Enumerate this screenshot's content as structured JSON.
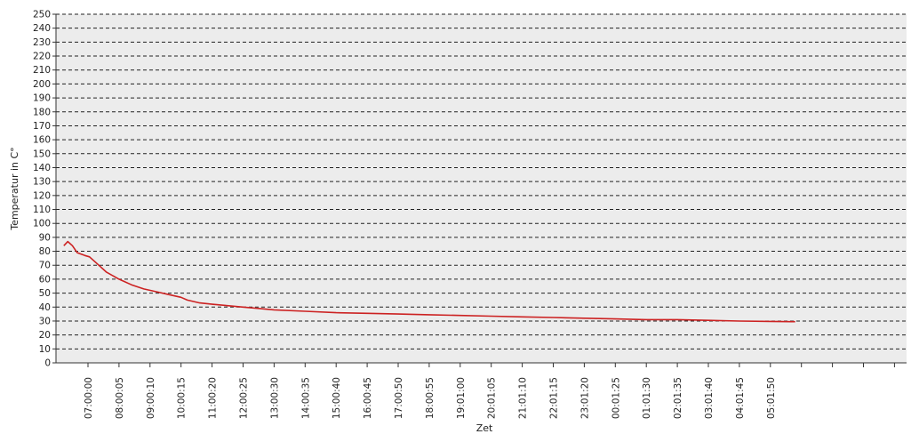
{
  "chart_data": {
    "type": "line",
    "title": "",
    "xlabel": "Zet",
    "ylabel": "Temperatur in C°",
    "ylim": [
      0,
      250
    ],
    "ytick_step": 10,
    "grid": true,
    "x_tick_labels": [
      "07:00:00",
      "08:00:05",
      "09:00:10",
      "10:00:15",
      "11:00:20",
      "12:00:25",
      "13:00:30",
      "14:00:35",
      "15:00:40",
      "16:00:45",
      "17:00:50",
      "18:00:55",
      "19:01:00",
      "20:01:05",
      "21:01:10",
      "22:01:15",
      "23:01:20",
      "00:01:25",
      "01:01:30",
      "02:01:35",
      "03:01:40",
      "04:01:45",
      "05:01:50",
      "",
      "",
      "",
      ""
    ],
    "series": [
      {
        "color": "#cc2222",
        "points": [
          [
            -0.78,
            84
          ],
          [
            -0.65,
            87
          ],
          [
            -0.5,
            84
          ],
          [
            -0.35,
            79
          ],
          [
            -0.1,
            77
          ],
          [
            0.05,
            76
          ],
          [
            0.3,
            71
          ],
          [
            0.6,
            65
          ],
          [
            1.0,
            60
          ],
          [
            1.4,
            56
          ],
          [
            1.8,
            53
          ],
          [
            2.2,
            51
          ],
          [
            2.6,
            49
          ],
          [
            3.0,
            47
          ],
          [
            3.2,
            45
          ],
          [
            3.6,
            43
          ],
          [
            4.0,
            42
          ],
          [
            4.5,
            41
          ],
          [
            5.0,
            40
          ],
          [
            5.5,
            39
          ],
          [
            6.0,
            38
          ],
          [
            7.0,
            37
          ],
          [
            8.0,
            36
          ],
          [
            9.0,
            35.5
          ],
          [
            10.0,
            35
          ],
          [
            11.0,
            34.5
          ],
          [
            12.0,
            34
          ],
          [
            13.0,
            33.5
          ],
          [
            14.0,
            33
          ],
          [
            15.0,
            32.5
          ],
          [
            16.0,
            32
          ],
          [
            17.0,
            31.5
          ],
          [
            18.0,
            31
          ],
          [
            19.0,
            31
          ],
          [
            20.0,
            30.5
          ],
          [
            21.0,
            30
          ],
          [
            22.0,
            29.7
          ],
          [
            22.8,
            29.5
          ]
        ]
      }
    ]
  }
}
